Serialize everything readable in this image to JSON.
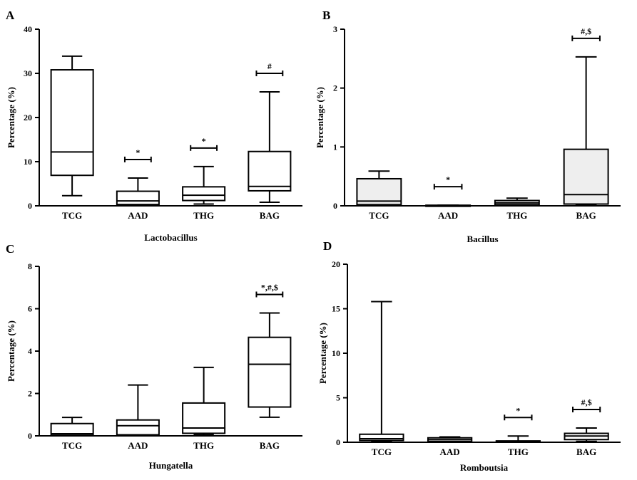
{
  "chart_data": [
    {
      "type": "box",
      "panel_label": "A",
      "xlabel": "Lactobacillus",
      "ylabel": "Percentage (%)",
      "ylim": [
        0,
        40
      ],
      "yticks": [
        "0",
        "10",
        "20",
        "30",
        "40"
      ],
      "categories": [
        "TCG",
        "AAD",
        "THG",
        "BAG"
      ],
      "fill": "#ffffff",
      "boxes": [
        {
          "min": 2.3,
          "q1": 6.9,
          "median": 12.2,
          "q3": 30.8,
          "max": 33.9,
          "annotation": ""
        },
        {
          "min": 0.1,
          "q1": 0.3,
          "median": 1.1,
          "q3": 3.3,
          "max": 6.3,
          "annotation": "*"
        },
        {
          "min": 0.4,
          "q1": 1.2,
          "median": 2.4,
          "q3": 4.3,
          "max": 8.9,
          "annotation": "*"
        },
        {
          "min": 0.8,
          "q1": 3.4,
          "median": 4.4,
          "q3": 12.3,
          "max": 25.8,
          "annotation": "#"
        }
      ]
    },
    {
      "type": "box",
      "panel_label": "B",
      "xlabel": "Bacillus",
      "ylabel": "Percentage (%)",
      "ylim": [
        0,
        3
      ],
      "yticks": [
        "0",
        "1",
        "2",
        "3"
      ],
      "categories": [
        "TCG",
        "AAD",
        "THG",
        "BAG"
      ],
      "fill": "#eeeeee",
      "boxes": [
        {
          "min": 0.01,
          "q1": 0.02,
          "median": 0.08,
          "q3": 0.46,
          "max": 0.59,
          "annotation": ""
        },
        {
          "min": 0.0,
          "q1": 0.0,
          "median": 0.005,
          "q3": 0.01,
          "max": 0.01,
          "annotation": "*"
        },
        {
          "min": 0.0,
          "q1": 0.02,
          "median": 0.05,
          "q3": 0.09,
          "max": 0.13,
          "annotation": ""
        },
        {
          "min": 0.01,
          "q1": 0.03,
          "median": 0.19,
          "q3": 0.96,
          "max": 2.53,
          "annotation": "#,$"
        }
      ]
    },
    {
      "type": "box",
      "panel_label": "C",
      "xlabel": "Hungatella",
      "ylabel": "Percentage (%)",
      "ylim": [
        0,
        8
      ],
      "yticks": [
        "0",
        "2",
        "4",
        "6",
        "8"
      ],
      "categories": [
        "TCG",
        "AAD",
        "THG",
        "BAG"
      ],
      "fill": "#ffffff",
      "boxes": [
        {
          "min": 0.0,
          "q1": 0.03,
          "median": 0.1,
          "q3": 0.58,
          "max": 0.87,
          "annotation": ""
        },
        {
          "min": 0.0,
          "q1": 0.05,
          "median": 0.48,
          "q3": 0.75,
          "max": 2.4,
          "annotation": ""
        },
        {
          "min": 0.05,
          "q1": 0.12,
          "median": 0.37,
          "q3": 1.55,
          "max": 3.23,
          "annotation": ""
        },
        {
          "min": 0.88,
          "q1": 1.36,
          "median": 3.38,
          "q3": 4.65,
          "max": 5.8,
          "annotation": "*,#,$"
        }
      ]
    },
    {
      "type": "box",
      "panel_label": "D",
      "xlabel": "Romboutsia",
      "ylabel": "Percentage (%)",
      "ylim": [
        0,
        20
      ],
      "yticks": [
        "0",
        "5",
        "10",
        "15",
        "20"
      ],
      "categories": [
        "TCG",
        "AAD",
        "THG",
        "BAG"
      ],
      "fill": "#ffffff",
      "boxes": [
        {
          "min": 0.05,
          "q1": 0.2,
          "median": 0.4,
          "q3": 0.9,
          "max": 15.8,
          "annotation": ""
        },
        {
          "min": 0.05,
          "q1": 0.1,
          "median": 0.3,
          "q3": 0.5,
          "max": 0.6,
          "annotation": ""
        },
        {
          "min": 0.0,
          "q1": 0.05,
          "median": 0.1,
          "q3": 0.15,
          "max": 0.7,
          "annotation": "*"
        },
        {
          "min": 0.1,
          "q1": 0.3,
          "median": 0.7,
          "q3": 1.0,
          "max": 1.6,
          "annotation": "#,$"
        }
      ]
    }
  ]
}
